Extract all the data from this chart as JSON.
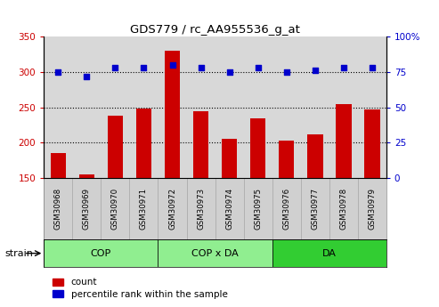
{
  "title": "GDS779 / rc_AA955536_g_at",
  "samples": [
    "GSM30968",
    "GSM30969",
    "GSM30970",
    "GSM30971",
    "GSM30972",
    "GSM30973",
    "GSM30974",
    "GSM30975",
    "GSM30976",
    "GSM30977",
    "GSM30978",
    "GSM30979"
  ],
  "counts": [
    185,
    155,
    238,
    248,
    330,
    245,
    206,
    235,
    203,
    212,
    255,
    247
  ],
  "percentiles": [
    75,
    72,
    78,
    78,
    80,
    78,
    75,
    78,
    75,
    76,
    78,
    78
  ],
  "groups": [
    {
      "label": "COP",
      "start": 0,
      "end": 3,
      "color": "#90ee90"
    },
    {
      "label": "COP x DA",
      "start": 4,
      "end": 7,
      "color": "#90ee90"
    },
    {
      "label": "DA",
      "start": 8,
      "end": 11,
      "color": "#32cd32"
    }
  ],
  "strain_label": "strain",
  "bar_color": "#cc0000",
  "dot_color": "#0000cc",
  "left_ylim": [
    150,
    350
  ],
  "left_yticks": [
    150,
    200,
    250,
    300,
    350
  ],
  "right_ylim": [
    0,
    100
  ],
  "right_yticks": [
    0,
    25,
    50,
    75,
    100
  ],
  "right_yticklabels": [
    "0",
    "25",
    "50",
    "75",
    "100%"
  ],
  "grid_values": [
    200,
    250,
    300
  ],
  "plot_bg_color": "#d8d8d8",
  "sample_cell_color": "#d0d0d0",
  "legend_count_label": "count",
  "legend_pct_label": "percentile rank within the sample"
}
